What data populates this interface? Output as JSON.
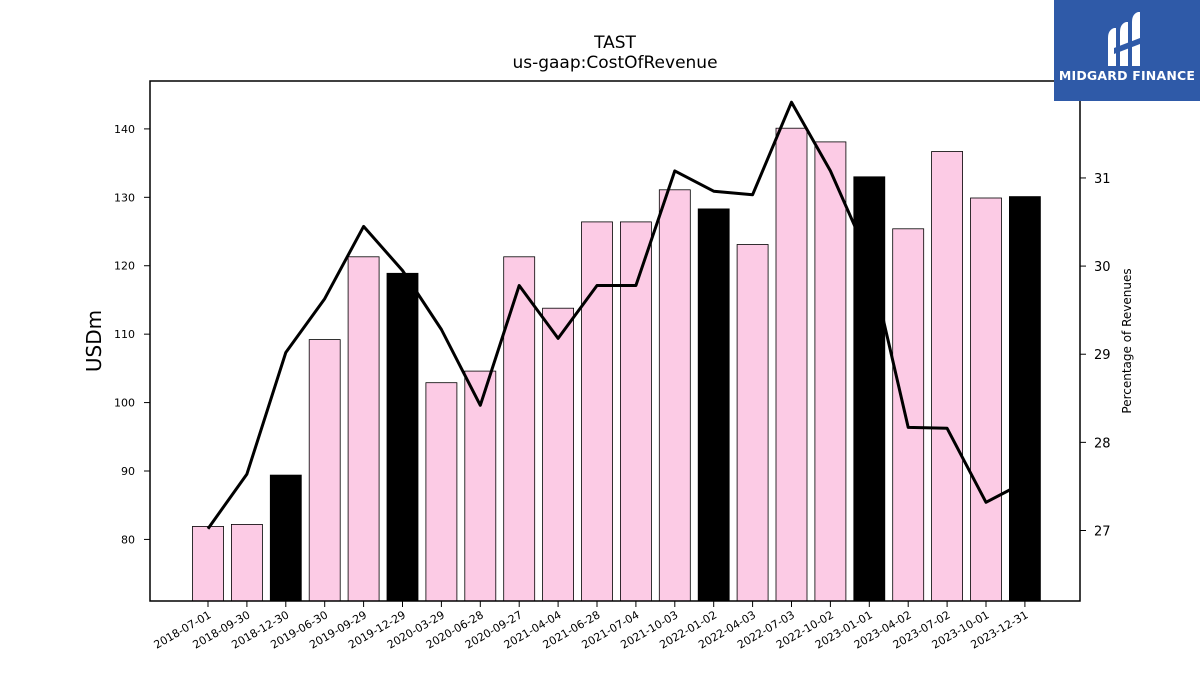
{
  "chart_data": {
    "type": "bar",
    "title": "TAST",
    "subtitle": "us-gaap:CostOfRevenue",
    "ylabel": "USDm",
    "y2label": "Percentage of Revenues",
    "ylim": [
      71,
      147
    ],
    "y2lim": [
      26.2,
      32.1
    ],
    "yticks": [
      80,
      90,
      100,
      110,
      120,
      130,
      140
    ],
    "y2ticks": [
      27,
      28,
      29,
      30,
      31
    ],
    "categories": [
      "2018-07-01",
      "2018-09-30",
      "2018-12-30",
      "2019-06-30",
      "2019-09-29",
      "2019-12-29",
      "2020-03-29",
      "2020-06-28",
      "2020-09-27",
      "2021-04-04",
      "2021-06-28",
      "2021-07-04",
      "2021-10-03",
      "2022-01-02",
      "2022-04-03",
      "2022-07-03",
      "2022-10-02",
      "2023-01-01",
      "2023-04-02",
      "2023-07-02",
      "2023-10-01",
      "2023-12-31"
    ],
    "series": [
      {
        "type": "bar",
        "values": [
          81.9,
          82.2,
          89.4,
          109.2,
          121.3,
          118.9,
          102.9,
          104.6,
          121.3,
          113.8,
          126.4,
          126.4,
          131.1,
          128.3,
          123.1,
          140.1,
          138.1,
          133.0,
          125.4,
          136.7,
          129.9,
          130.1
        ],
        "highlight": [
          false,
          false,
          true,
          false,
          false,
          true,
          false,
          false,
          false,
          false,
          false,
          false,
          false,
          true,
          false,
          false,
          false,
          true,
          false,
          false,
          false,
          true
        ]
      },
      {
        "type": "line",
        "axis": "right",
        "values": [
          27.02,
          27.64,
          29.02,
          29.63,
          30.45,
          29.95,
          29.28,
          28.42,
          29.78,
          29.18,
          29.78,
          29.78,
          31.08,
          30.85,
          30.81,
          31.86,
          31.08,
          30.08,
          28.17,
          28.16,
          27.32,
          27.55
        ]
      }
    ],
    "colors": {
      "bar": "#fccbe5",
      "bar_highlight": "#000000",
      "edge": "#000000",
      "line": "#000000"
    },
    "grid": false,
    "legend": "none"
  },
  "logo": {
    "text": "MIDGARD FINANCE",
    "background": "#2f5aa8"
  }
}
